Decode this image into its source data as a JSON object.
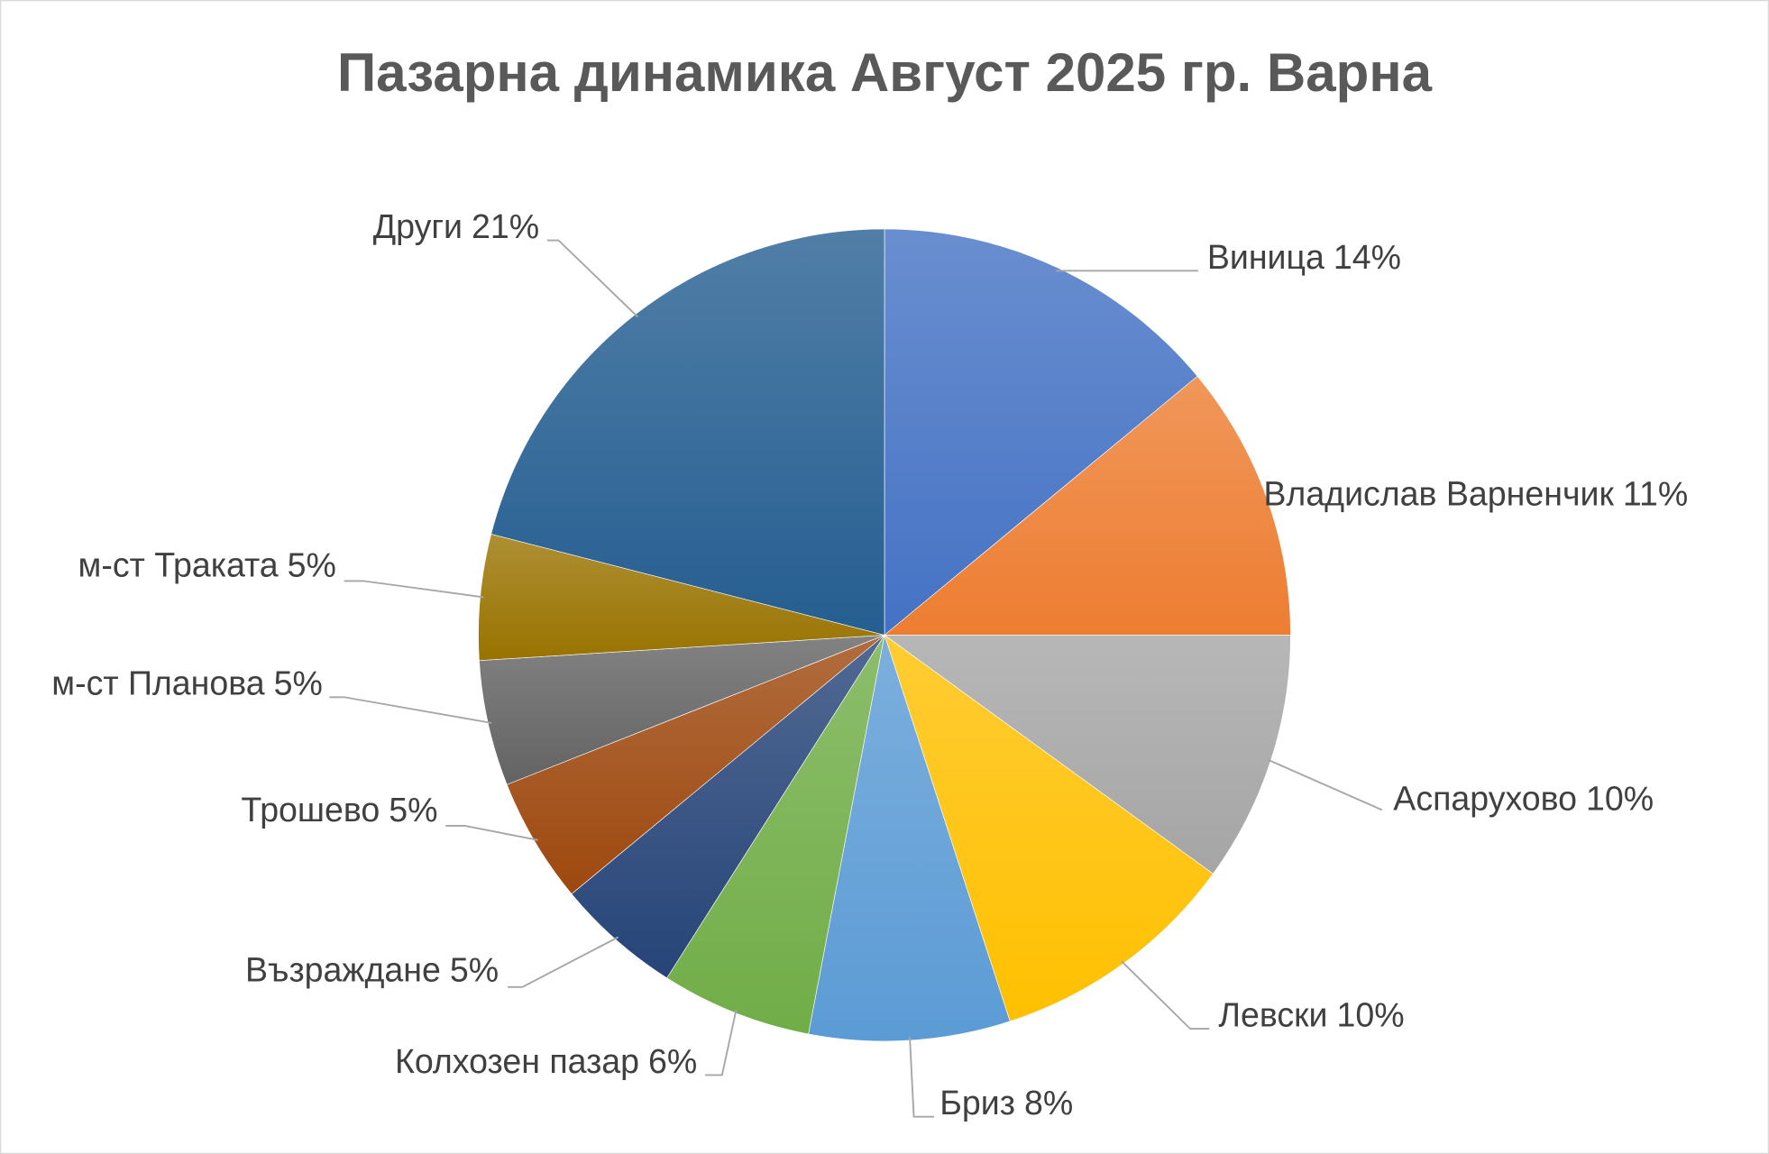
{
  "chart_data": {
    "type": "pie",
    "title": "Пазарна динамика Август 2025 гр. Варна",
    "categories": [
      "Виница",
      "Владислав Варненчик",
      "Аспарухово",
      "Левски",
      "Бриз",
      "Колхозен пазар",
      "Възраждане",
      "Трошево",
      "м-ст Планова",
      "м-ст Траката",
      "Други"
    ],
    "values": [
      14,
      11,
      10,
      10,
      8,
      6,
      5,
      5,
      5,
      5,
      21
    ],
    "value_labels": [
      "14%",
      "11%",
      "10%",
      "10%",
      "8%",
      "6%",
      "5%",
      "5%",
      "5%",
      "5%",
      "21%"
    ],
    "colors": [
      "#4472c4",
      "#ed7d31",
      "#a5a5a5",
      "#ffc000",
      "#5b9bd5",
      "#70ad47",
      "#264478",
      "#9e480e",
      "#636363",
      "#997300",
      "#255e91"
    ]
  }
}
